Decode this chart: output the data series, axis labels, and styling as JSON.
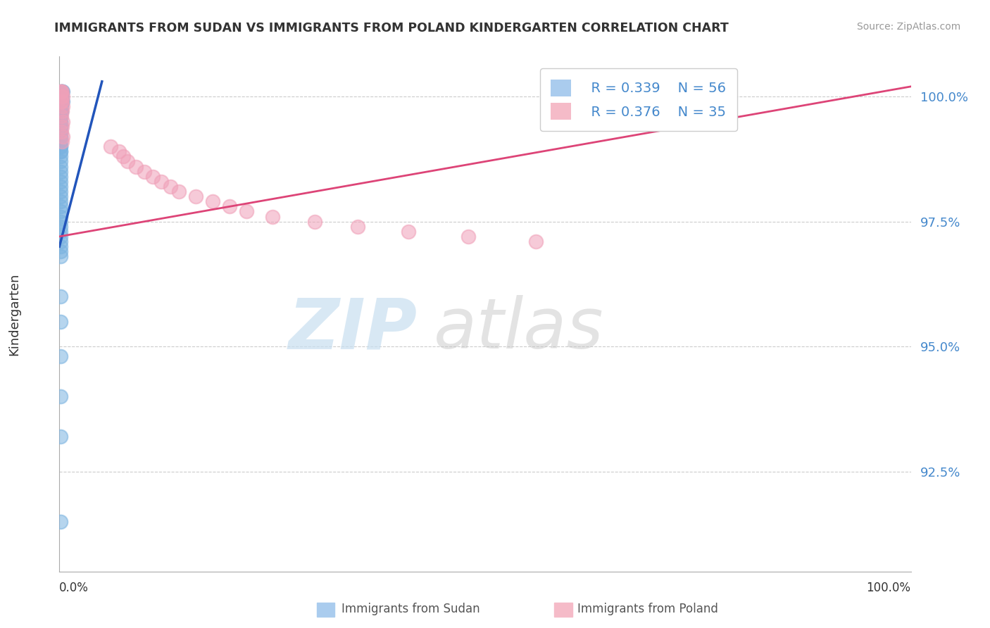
{
  "title": "IMMIGRANTS FROM SUDAN VS IMMIGRANTS FROM POLAND KINDERGARTEN CORRELATION CHART",
  "source": "Source: ZipAtlas.com",
  "ylabel": "Kindergarten",
  "legend_sudan_r": "R = 0.339",
  "legend_sudan_n": "N = 56",
  "legend_poland_r": "R = 0.376",
  "legend_poland_n": "N = 35",
  "sudan_color": "#7ab3e0",
  "poland_color": "#f0a0b8",
  "sudan_line_color": "#2255bb",
  "poland_line_color": "#dd4477",
  "ytick_labels": [
    "92.5%",
    "95.0%",
    "97.5%",
    "100.0%"
  ],
  "ytick_values": [
    0.925,
    0.95,
    0.975,
    1.0
  ],
  "xmin": 0.0,
  "xmax": 1.0,
  "ymin": 0.905,
  "ymax": 1.008,
  "sudan_x": [
    0.002,
    0.003,
    0.004,
    0.003,
    0.002,
    0.003,
    0.002,
    0.004,
    0.003,
    0.002,
    0.001,
    0.002,
    0.001,
    0.002,
    0.001,
    0.001,
    0.001,
    0.001,
    0.001,
    0.001,
    0.001,
    0.001,
    0.001,
    0.001,
    0.001,
    0.001,
    0.001,
    0.001,
    0.001,
    0.001,
    0.001,
    0.001,
    0.001,
    0.001,
    0.001,
    0.001,
    0.001,
    0.001,
    0.001,
    0.001,
    0.001,
    0.001,
    0.001,
    0.001,
    0.001,
    0.001,
    0.001,
    0.001,
    0.001,
    0.001,
    0.001,
    0.001,
    0.001,
    0.001,
    0.001,
    0.001
  ],
  "sudan_y": [
    1.001,
    1.001,
    1.001,
    1.001,
    1.0,
    1.0,
    0.999,
    0.999,
    0.999,
    0.998,
    0.998,
    0.997,
    0.997,
    0.997,
    0.996,
    0.996,
    0.995,
    0.995,
    0.994,
    0.994,
    0.993,
    0.993,
    0.992,
    0.992,
    0.991,
    0.99,
    0.99,
    0.989,
    0.989,
    0.988,
    0.987,
    0.986,
    0.985,
    0.984,
    0.983,
    0.982,
    0.981,
    0.98,
    0.979,
    0.978,
    0.977,
    0.976,
    0.975,
    0.974,
    0.973,
    0.972,
    0.971,
    0.97,
    0.969,
    0.968,
    0.96,
    0.955,
    0.948,
    0.94,
    0.932,
    0.915
  ],
  "poland_x": [
    0.001,
    0.002,
    0.003,
    0.004,
    0.002,
    0.003,
    0.002,
    0.004,
    0.003,
    0.002,
    0.004,
    0.003,
    0.002,
    0.004,
    0.003,
    0.06,
    0.07,
    0.075,
    0.08,
    0.09,
    0.1,
    0.11,
    0.12,
    0.13,
    0.14,
    0.16,
    0.18,
    0.2,
    0.22,
    0.25,
    0.3,
    0.35,
    0.41,
    0.48,
    0.56
  ],
  "poland_y": [
    1.001,
    1.001,
    1.001,
    1.0,
    1.0,
    0.999,
    0.999,
    0.998,
    0.997,
    0.996,
    0.995,
    0.994,
    0.993,
    0.992,
    0.991,
    0.99,
    0.989,
    0.988,
    0.987,
    0.986,
    0.985,
    0.984,
    0.983,
    0.982,
    0.981,
    0.98,
    0.979,
    0.978,
    0.977,
    0.976,
    0.975,
    0.974,
    0.973,
    0.972,
    0.971
  ],
  "sudan_line_x": [
    0.0,
    0.05
  ],
  "sudan_line_y": [
    0.97,
    1.003
  ],
  "poland_line_x": [
    0.0,
    1.0
  ],
  "poland_line_y": [
    0.972,
    1.002
  ]
}
